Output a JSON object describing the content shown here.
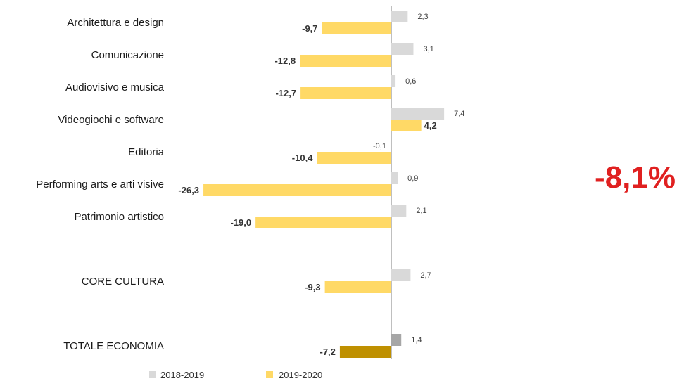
{
  "chart_data": {
    "type": "bar",
    "orientation": "horizontal",
    "categories": [
      "Architettura e design",
      "Comunicazione",
      "Audiovisivo e musica",
      "Videogiochi e software",
      "Editoria",
      "Performing arts e arti visive",
      "Patrimonio artistico",
      "CORE CULTURA",
      "TOTALE ECONOMIA"
    ],
    "series": [
      {
        "name": "2018-2019",
        "values": [
          2.3,
          3.1,
          0.6,
          7.4,
          -0.1,
          0.9,
          2.1,
          2.7,
          1.4
        ],
        "labels": [
          "2,3",
          "3,1",
          "0,6",
          "7,4",
          "-0,1",
          "0,9",
          "2,1",
          "2,7",
          "1,4"
        ],
        "color": "#d9d9d9"
      },
      {
        "name": "2019-2020",
        "values": [
          -9.7,
          -12.8,
          -12.7,
          4.2,
          -10.4,
          -26.3,
          -19.0,
          -9.3,
          -7.2
        ],
        "labels": [
          "-9,7",
          "-12,8",
          "-12,7",
          "4,2",
          "-10,4",
          "-26,3",
          "-19,0",
          "-9,3",
          "-7,2"
        ],
        "color": "#ffd966"
      }
    ],
    "highlight_colors": {
      "TOTALE ECONOMIA": [
        "#a6a6a6",
        "#bf9000"
      ]
    },
    "legend_position": "bottom-left",
    "grid": false
  },
  "annotation": {
    "text": "-8,1%",
    "color": "#e02020"
  }
}
